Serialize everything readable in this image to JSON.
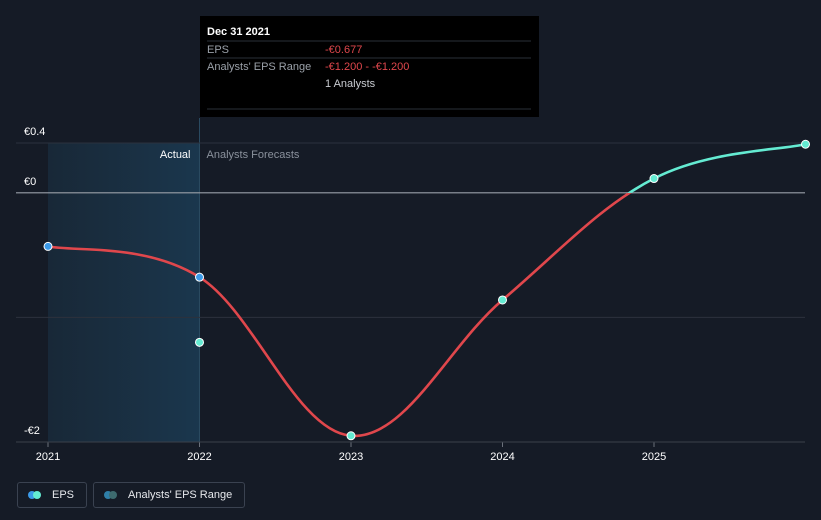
{
  "chart_data": {
    "type": "line",
    "currency": "€",
    "x_ticks": [
      "2021",
      "2022",
      "2023",
      "2024",
      "2025"
    ],
    "y_tick_labels": [
      {
        "value": 0.4,
        "label": "€0.4"
      },
      {
        "value": 0,
        "label": "€0"
      },
      {
        "value": -2,
        "label": "-€2"
      }
    ],
    "ylim": [
      -2,
      0.4
    ],
    "xlim": [
      2021,
      2026
    ],
    "series": [
      {
        "name": "EPS",
        "color_negative": "#e0474c",
        "color_positive": "#64ebd2",
        "points": [
          {
            "x": 2021.0,
            "y": -0.43
          },
          {
            "x": 2022.0,
            "y": -0.677
          },
          {
            "x": 2023.0,
            "y": -1.95
          },
          {
            "x": 2024.0,
            "y": -0.86
          },
          {
            "x": 2025.0,
            "y": 0.115
          },
          {
            "x": 2026.0,
            "y": 0.39
          }
        ],
        "marker_colors": [
          "#3b9ae8",
          "#3b9ae8",
          "#64ebd2",
          "#64ebd2",
          "#64ebd2",
          "#64ebd2"
        ]
      }
    ],
    "range_points": [
      {
        "x": 2022.0,
        "low": -1.2,
        "high": -1.2,
        "color": "#64ebd2"
      }
    ],
    "actual_end": 2022.0,
    "actual_label": "Actual",
    "forecast_label": "Analysts Forecasts",
    "tooltip": {
      "date": "Dec 31 2021",
      "rows": [
        {
          "label": "EPS",
          "value": "-€0.677",
          "color": "#e0474c"
        },
        {
          "label": "Analysts' EPS Range",
          "value": "-€1.200 - -€1.200",
          "color": "#e0474c"
        },
        {
          "label": "",
          "value": "1 Analysts",
          "color": "#c9ccd2"
        }
      ]
    },
    "legend": [
      {
        "label": "EPS",
        "color_a": "#3b9ae8",
        "color_b": "#64ebd2"
      },
      {
        "label": "Analysts' EPS Range",
        "color_a": "#2f7fa8",
        "color_b": "#3d6a6e"
      }
    ]
  }
}
